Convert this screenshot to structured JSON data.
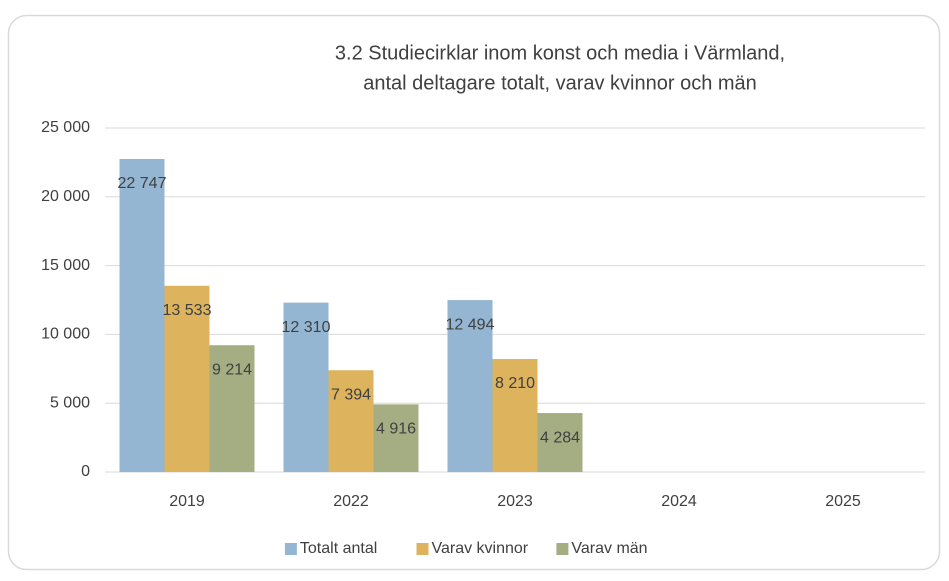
{
  "chart_data": {
    "type": "bar",
    "title": [
      "3.2 Studiecirklar inom konst och media i Värmland,",
      "antal deltagare totalt, varav kvinnor och män"
    ],
    "categories": [
      "2019",
      "2022",
      "2023",
      "2024",
      "2025"
    ],
    "series": [
      {
        "name": "Totalt antal",
        "color": "#94b6d2",
        "values": [
          22747,
          12310,
          12494,
          null,
          null
        ],
        "value_labels": [
          "22 747",
          "12 310",
          "12 494",
          null,
          null
        ]
      },
      {
        "name": "Varav kvinnor",
        "color": "#ddb35d",
        "values": [
          13533,
          7394,
          8210,
          null,
          null
        ],
        "value_labels": [
          "13 533",
          "7 394",
          "8 210",
          null,
          null
        ]
      },
      {
        "name": "Varav män",
        "color": "#a5ad83",
        "values": [
          9214,
          4916,
          4284,
          null,
          null
        ],
        "value_labels": [
          "9 214",
          "4 916",
          "4 284",
          null,
          null
        ]
      }
    ],
    "ylim": [
      0,
      25000
    ],
    "yticks": [
      0,
      {
        "value": 5000,
        "label": "5 000"
      },
      {
        "value": 10000,
        "label": "10 000"
      },
      {
        "value": 15000,
        "label": "15 000"
      },
      {
        "value": 20000,
        "label": "20 000"
      },
      {
        "value": 25000,
        "label": "25 000"
      }
    ],
    "grid": true,
    "legend": "bottom"
  }
}
